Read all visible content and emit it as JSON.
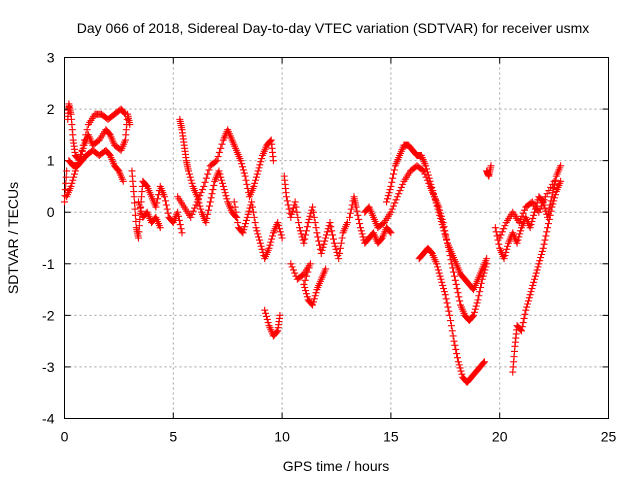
{
  "chart_data": {
    "type": "scatter",
    "title": "Day 066 of 2018, Sidereal Day-to-day VTEC variation (SDTVAR) for receiver usmx",
    "xlabel": "GPS time / hours",
    "ylabel": "SDTVAR / TECUs",
    "xlim": [
      0,
      25
    ],
    "ylim": [
      -4,
      3
    ],
    "xticks": [
      "0",
      "5",
      "10",
      "15",
      "20",
      "25"
    ],
    "yticks": [
      "-4",
      "-3",
      "-2",
      "-1",
      "0",
      "1",
      "2",
      "3"
    ],
    "grid": true,
    "marker": "+",
    "marker_color": "#ff0000",
    "series": [
      {
        "name": "SDTVAR",
        "points": [
          [
            0.0,
            0.2
          ],
          [
            0.1,
            0.8
          ],
          [
            0.15,
            1.8
          ],
          [
            0.2,
            2.1
          ],
          [
            0.3,
            1.9
          ],
          [
            0.4,
            1.4
          ],
          [
            0.5,
            1.1
          ],
          [
            0.7,
            1.0
          ],
          [
            0.9,
            1.3
          ],
          [
            1.1,
            1.5
          ],
          [
            1.3,
            1.3
          ],
          [
            1.6,
            1.4
          ],
          [
            1.9,
            1.6
          ],
          [
            2.1,
            1.5
          ],
          [
            2.3,
            1.3
          ],
          [
            2.6,
            1.2
          ],
          [
            2.8,
            1.4
          ],
          [
            2.9,
            1.9
          ],
          [
            3.0,
            1.7
          ],
          [
            0.2,
            1.0
          ],
          [
            0.4,
            0.9
          ],
          [
            0.6,
            0.9
          ],
          [
            0.8,
            1.0
          ],
          [
            1.0,
            1.1
          ],
          [
            1.3,
            1.2
          ],
          [
            1.6,
            1.1
          ],
          [
            1.9,
            1.2
          ],
          [
            2.1,
            1.1
          ],
          [
            2.3,
            0.9
          ],
          [
            2.5,
            0.8
          ],
          [
            2.7,
            0.6
          ],
          [
            0.1,
            0.3
          ],
          [
            0.3,
            0.5
          ],
          [
            0.5,
            0.8
          ],
          [
            0.8,
            1.2
          ],
          [
            1.1,
            1.7
          ],
          [
            1.4,
            1.9
          ],
          [
            1.7,
            1.9
          ],
          [
            2.0,
            1.8
          ],
          [
            2.3,
            1.9
          ],
          [
            2.6,
            2.0
          ],
          [
            2.8,
            1.9
          ],
          [
            3.1,
            0.8
          ],
          [
            3.2,
            0.3
          ],
          [
            3.3,
            -0.3
          ],
          [
            3.4,
            -0.5
          ],
          [
            3.5,
            0.1
          ],
          [
            3.6,
            0.6
          ],
          [
            3.8,
            0.5
          ],
          [
            4.0,
            0.3
          ],
          [
            4.2,
            0.1
          ],
          [
            4.4,
            0.5
          ],
          [
            4.6,
            0.3
          ],
          [
            4.8,
            -0.1
          ],
          [
            5.0,
            -0.2
          ],
          [
            5.2,
            0.0
          ],
          [
            5.4,
            -0.4
          ],
          [
            3.4,
            0.2
          ],
          [
            3.6,
            -0.1
          ],
          [
            3.8,
            0.0
          ],
          [
            4.0,
            -0.2
          ],
          [
            4.2,
            -0.1
          ],
          [
            4.4,
            -0.3
          ],
          [
            5.3,
            1.8
          ],
          [
            5.4,
            1.6
          ],
          [
            5.5,
            1.3
          ],
          [
            5.6,
            1.0
          ],
          [
            5.7,
            0.8
          ],
          [
            5.9,
            0.5
          ],
          [
            6.1,
            0.3
          ],
          [
            6.3,
            0.0
          ],
          [
            6.5,
            -0.2
          ],
          [
            6.7,
            0.2
          ],
          [
            6.9,
            0.6
          ],
          [
            7.1,
            0.8
          ],
          [
            7.3,
            0.5
          ],
          [
            7.5,
            0.2
          ],
          [
            7.7,
            0.0
          ],
          [
            7.9,
            -0.1
          ],
          [
            5.2,
            0.3
          ],
          [
            5.5,
            0.1
          ],
          [
            5.8,
            -0.1
          ],
          [
            6.1,
            0.2
          ],
          [
            6.4,
            0.5
          ],
          [
            6.7,
            0.9
          ],
          [
            7.0,
            1.0
          ],
          [
            7.3,
            1.4
          ],
          [
            7.5,
            1.6
          ],
          [
            7.7,
            1.4
          ],
          [
            7.9,
            1.2
          ],
          [
            8.1,
            1.0
          ],
          [
            8.3,
            0.7
          ],
          [
            8.5,
            0.3
          ],
          [
            8.7,
            0.5
          ],
          [
            8.9,
            0.8
          ],
          [
            9.1,
            1.1
          ],
          [
            9.3,
            1.3
          ],
          [
            9.5,
            1.4
          ],
          [
            9.6,
            1.0
          ],
          [
            7.8,
            0.2
          ],
          [
            8.0,
            -0.3
          ],
          [
            8.2,
            -0.4
          ],
          [
            8.4,
            -0.1
          ],
          [
            8.6,
            0.2
          ],
          [
            8.8,
            -0.3
          ],
          [
            9.0,
            -0.6
          ],
          [
            9.2,
            -0.9
          ],
          [
            9.4,
            -0.7
          ],
          [
            9.6,
            -0.4
          ],
          [
            9.8,
            -0.2
          ],
          [
            10.0,
            -0.5
          ],
          [
            9.2,
            -1.9
          ],
          [
            9.4,
            -2.2
          ],
          [
            9.6,
            -2.4
          ],
          [
            9.8,
            -2.3
          ],
          [
            9.9,
            -2.0
          ],
          [
            10.1,
            0.7
          ],
          [
            10.2,
            0.3
          ],
          [
            10.4,
            -0.1
          ],
          [
            10.6,
            0.2
          ],
          [
            10.8,
            -0.3
          ],
          [
            11.0,
            -0.6
          ],
          [
            11.2,
            -0.2
          ],
          [
            11.4,
            0.1
          ],
          [
            11.6,
            -0.4
          ],
          [
            11.8,
            -0.8
          ],
          [
            12.0,
            -0.5
          ],
          [
            12.2,
            -0.2
          ],
          [
            12.4,
            -0.6
          ],
          [
            12.6,
            -0.9
          ],
          [
            12.8,
            -0.4
          ],
          [
            13.0,
            -0.2
          ],
          [
            10.4,
            -1.0
          ],
          [
            10.7,
            -1.3
          ],
          [
            11.0,
            -1.2
          ],
          [
            11.3,
            -1.0
          ],
          [
            11.0,
            -1.4
          ],
          [
            11.2,
            -1.7
          ],
          [
            11.4,
            -1.8
          ],
          [
            11.6,
            -1.5
          ],
          [
            11.8,
            -1.3
          ],
          [
            12.0,
            -1.1
          ],
          [
            13.1,
            -0.1
          ],
          [
            13.3,
            0.3
          ],
          [
            13.4,
            0.1
          ],
          [
            13.6,
            -0.3
          ],
          [
            13.8,
            -0.6
          ],
          [
            14.0,
            -0.5
          ],
          [
            14.2,
            -0.4
          ],
          [
            14.4,
            -0.6
          ],
          [
            14.6,
            -0.5
          ],
          [
            14.8,
            -0.3
          ],
          [
            15.0,
            -0.4
          ],
          [
            13.8,
            0.0
          ],
          [
            14.0,
            0.1
          ],
          [
            14.2,
            -0.1
          ],
          [
            14.4,
            -0.3
          ],
          [
            14.7,
            -0.2
          ],
          [
            15.0,
            0.0
          ],
          [
            15.3,
            0.3
          ],
          [
            15.6,
            0.6
          ],
          [
            15.9,
            0.8
          ],
          [
            16.2,
            0.9
          ],
          [
            16.5,
            0.8
          ],
          [
            16.8,
            0.5
          ],
          [
            17.0,
            0.3
          ],
          [
            17.2,
            0.1
          ],
          [
            17.4,
            -0.2
          ],
          [
            17.6,
            -0.6
          ],
          [
            17.8,
            -1.0
          ],
          [
            18.0,
            -1.4
          ],
          [
            18.2,
            -1.8
          ],
          [
            18.4,
            -2.0
          ],
          [
            18.6,
            -2.1
          ],
          [
            18.8,
            -2.0
          ],
          [
            19.0,
            -1.7
          ],
          [
            19.2,
            -1.3
          ],
          [
            19.4,
            -1.0
          ],
          [
            14.8,
            0.2
          ],
          [
            15.0,
            0.5
          ],
          [
            15.2,
            0.9
          ],
          [
            15.4,
            1.1
          ],
          [
            15.6,
            1.3
          ],
          [
            15.8,
            1.3
          ],
          [
            16.0,
            1.2
          ],
          [
            16.2,
            1.1
          ],
          [
            16.4,
            1.1
          ],
          [
            16.6,
            0.9
          ],
          [
            16.8,
            0.6
          ],
          [
            17.0,
            0.3
          ],
          [
            17.2,
            0.0
          ],
          [
            17.4,
            -0.3
          ],
          [
            17.6,
            -0.6
          ],
          [
            17.8,
            -0.8
          ],
          [
            18.0,
            -1.0
          ],
          [
            18.2,
            -1.2
          ],
          [
            18.4,
            -1.3
          ],
          [
            18.6,
            -1.4
          ],
          [
            18.8,
            -1.5
          ],
          [
            19.0,
            -1.3
          ],
          [
            19.2,
            -1.1
          ],
          [
            19.4,
            -0.9
          ],
          [
            16.3,
            -0.9
          ],
          [
            16.5,
            -0.8
          ],
          [
            16.7,
            -0.7
          ],
          [
            16.9,
            -0.8
          ],
          [
            17.1,
            -1.0
          ],
          [
            17.3,
            -1.3
          ],
          [
            17.5,
            -1.6
          ],
          [
            17.7,
            -2.0
          ],
          [
            17.9,
            -2.5
          ],
          [
            18.1,
            -2.9
          ],
          [
            18.3,
            -3.2
          ],
          [
            18.5,
            -3.3
          ],
          [
            18.7,
            -3.2
          ],
          [
            18.9,
            -3.1
          ],
          [
            19.1,
            -3.0
          ],
          [
            19.3,
            -2.9
          ],
          [
            19.4,
            0.8
          ],
          [
            19.5,
            0.7
          ],
          [
            19.6,
            0.9
          ],
          [
            19.8,
            -0.3
          ],
          [
            20.0,
            -0.7
          ],
          [
            20.2,
            -0.9
          ],
          [
            20.4,
            -0.6
          ],
          [
            20.6,
            -0.4
          ],
          [
            20.8,
            -0.6
          ],
          [
            21.0,
            -0.3
          ],
          [
            21.2,
            -0.1
          ],
          [
            21.4,
            -0.3
          ],
          [
            21.6,
            0.0
          ],
          [
            21.8,
            0.3
          ],
          [
            22.0,
            0.2
          ],
          [
            22.2,
            -0.1
          ],
          [
            22.4,
            0.3
          ],
          [
            22.6,
            0.7
          ],
          [
            22.8,
            0.9
          ],
          [
            20.6,
            -3.1
          ],
          [
            20.7,
            -2.6
          ],
          [
            20.8,
            -2.2
          ],
          [
            21.0,
            -2.3
          ],
          [
            21.2,
            -1.9
          ],
          [
            21.4,
            -1.6
          ],
          [
            21.6,
            -1.3
          ],
          [
            21.8,
            -1.0
          ],
          [
            22.0,
            -0.7
          ],
          [
            22.2,
            -0.3
          ],
          [
            22.4,
            0.1
          ],
          [
            22.6,
            0.4
          ],
          [
            22.8,
            0.6
          ],
          [
            20.0,
            -0.5
          ],
          [
            20.3,
            -0.2
          ],
          [
            20.6,
            0.0
          ],
          [
            20.9,
            -0.2
          ],
          [
            21.2,
            0.1
          ],
          [
            21.5,
            0.2
          ],
          [
            21.8,
            0.0
          ],
          [
            22.1,
            0.3
          ],
          [
            22.5,
            0.6
          ]
        ]
      }
    ]
  }
}
